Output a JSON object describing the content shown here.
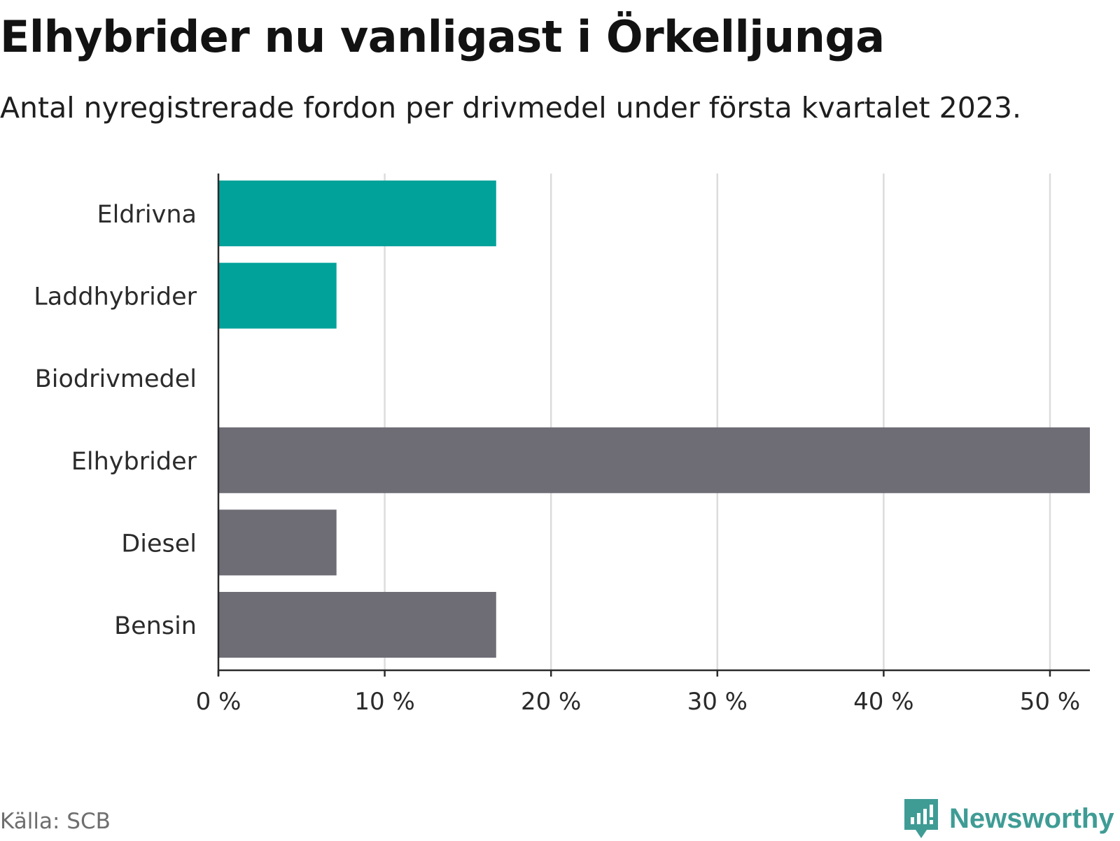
{
  "title": "Elhybrider nu vanligast i Örkelljunga",
  "subtitle": "Antal nyregistrerade fordon per drivmedel under första kvartalet 2023.",
  "source": "Källa: SCB",
  "brand": {
    "name": "Newsworthy",
    "icon": "newsworthy-logo-icon",
    "color": "#3f9c95"
  },
  "chart_data": {
    "type": "bar",
    "orientation": "horizontal",
    "categories": [
      "Eldrivna",
      "Laddhybrider",
      "Biodrivmedel",
      "Elhybrider",
      "Diesel",
      "Bensin"
    ],
    "values": [
      16.7,
      7.1,
      0,
      52.4,
      7.1,
      16.7
    ],
    "colors": [
      "#00a29a",
      "#00a29a",
      "#00a29a",
      "#6e6d76",
      "#6e6d76",
      "#6e6d76"
    ],
    "xlim": [
      0,
      52.4
    ],
    "xticks": [
      0,
      10,
      20,
      30,
      40,
      50
    ],
    "xtick_labels": [
      "0 %",
      "10 %",
      "20 %",
      "30 %",
      "40 %",
      "50 %"
    ],
    "grid": true,
    "legend": "none"
  }
}
